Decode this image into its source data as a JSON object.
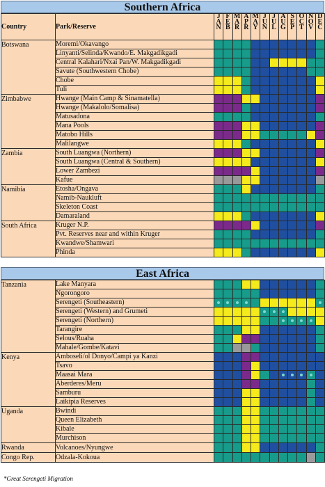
{
  "months": [
    "JAN",
    "FEB",
    "MAR",
    "APR",
    "MAY",
    "JUN",
    "JUL",
    "AUG",
    "SEP",
    "OCT",
    "NOV",
    "DEC"
  ],
  "headers": {
    "country": "Country",
    "park": "Park/Reserve"
  },
  "colors": {
    "yellow": "#f5ea1c",
    "green": "#179b8a",
    "blue": "#1f4f9e",
    "purple": "#7b2a8c",
    "gray": "#9a9a9a",
    "dot": "#7fd7d0"
  },
  "sections": [
    {
      "title": "Southern Africa",
      "groups": [
        {
          "country": "Botswana",
          "parks": [
            {
              "name": "Moremi/Okavango",
              "months": "GGGGBBBBBBBG"
            },
            {
              "name": "Linyanti/Selinda/Kwando/E. Makgadikgadi",
              "months": "GGGGBBBBBBBG"
            },
            {
              "name": "Central Kalahari/Nxai Pan/W. Makgadikgadi",
              "months": "GGGGBBYYYYGG"
            },
            {
              "name": "Savute (Southwestern Chobe)",
              "months": "GGGGBBBBBBGG"
            },
            {
              "name": "Chobe",
              "months": "YYYGBBBBBBBY"
            },
            {
              "name": "Tuli",
              "months": "YYYGBBBBBBBY"
            }
          ]
        },
        {
          "country": "Zimbabwe",
          "parks": [
            {
              "name": "Hwange (Main Camp & Sinamatella)",
              "months": "PPPYYBBBBBBP"
            },
            {
              "name": "Hwange (Makalolo/Somalisa)",
              "months": "PPPGBBBBBBBP"
            },
            {
              "name": "Matusadona",
              "months": "GGGGBBBBBBBG"
            },
            {
              "name": "Mana Pools",
              "months": "PPPYYBBBBBBP"
            },
            {
              "name": "Matobo Hills",
              "months": "PPPYYGGGGGYP"
            },
            {
              "name": "Malilangwe",
              "months": "YYYGBBBBBBBY"
            }
          ]
        },
        {
          "country": "Zambia",
          "parks": [
            {
              "name": "South Luangwa (Northern)",
              "months": "PPPYYBBBBBBP"
            },
            {
              "name": "South Luangwa (Central & Southern)",
              "months": "YYYYBBBBBBBY"
            },
            {
              "name": "Lower Zambezi",
              "months": "PPPPYBBBBBBP"
            },
            {
              "name": "Kafue",
              "months": "XXXYYBBBBBBX"
            }
          ]
        },
        {
          "country": "Namibia",
          "parks": [
            {
              "name": "Etosha/Ongava",
              "months": "GGGYBBBBBBBG"
            },
            {
              "name": "Namib-Naukluft",
              "months": "GGGGGGGGGGGG"
            },
            {
              "name": "Skeleton Coast",
              "months": "GGGGGGGGGGGG"
            },
            {
              "name": "Damaraland",
              "months": "YYYGBBBBBBBY"
            }
          ]
        },
        {
          "country": "South Africa",
          "parks": [
            {
              "name": "Kruger N.P.",
              "months": "PPPPYBBBBBBP"
            },
            {
              "name": "Pvt. Reserves near and within Kruger",
              "months": "GGGGBBBBBBBG"
            },
            {
              "name": "Kwandwe/Shamwari",
              "months": "GGGGGGGGGGGG"
            },
            {
              "name": "Phinda",
              "months": "YYYGBBBBBBBY"
            }
          ]
        }
      ]
    },
    {
      "title": "East Africa",
      "groups": [
        {
          "country": "Tanzania",
          "parks": [
            {
              "name": "Lake Manyara",
              "months": "GGGYYBBBBBBG"
            },
            {
              "name": "Ngorongoro",
              "months": "GGGGGBBBBBBG"
            },
            {
              "name": "Serengeti (Southeastern)",
              "months": "GGGGGYYYYYYG",
              "dots": [
                0,
                1,
                2,
                3,
                11
              ]
            },
            {
              "name": "Serengeti (Western) and Grumeti",
              "months": "YYYYYGGGYYYY",
              "dots": [
                5,
                6,
                7
              ]
            },
            {
              "name": "Serengeti (Northern)",
              "months": "YYYYYGGGGGGY",
              "dots": [
                7,
                8,
                9,
                10
              ]
            },
            {
              "name": "Tarangire",
              "months": "GGGYYBBBBBBG"
            },
            {
              "name": "Selous/Ruaha",
              "months": "GGYPPBBBBBBG"
            },
            {
              "name": "Mahale/Gombe/Katavi",
              "months": "GGXXGBBBBBBG"
            }
          ]
        },
        {
          "country": "Kenya",
          "parks": [
            {
              "name": "Amboseli/ol Donyo/Campi ya Kanzi",
              "months": "BBBPPBBBBBBB"
            },
            {
              "name": "Tsavo",
              "months": "BBBPYBBBBBBB"
            },
            {
              "name": "Maasai Mara",
              "months": "BBBPYGBBBBGB",
              "dots": [
                7,
                8,
                9,
                10
              ]
            },
            {
              "name": "Aberderes/Meru",
              "months": "BBBPPBBBBBGB"
            },
            {
              "name": "Samburu",
              "months": "BBBYYBBBBBGB"
            },
            {
              "name": "Laikipia Reserves",
              "months": "BBBYYBBBBBGB"
            }
          ]
        },
        {
          "country": "Uganda",
          "parks": [
            {
              "name": "Bwindi",
              "months": "GGGYYGGGGGGG"
            },
            {
              "name": "Queen Elizabeth",
              "months": "GGGYYGGGGGGG"
            },
            {
              "name": "Kibale",
              "months": "GGGYYGGGGGGG"
            },
            {
              "name": "Murchison",
              "months": "GGGYYGGGGGGG"
            }
          ]
        },
        {
          "country": "Rwanda",
          "parks": [
            {
              "name": "Volcanoes/Nyungwe",
              "months": "GGGYYBBBBBBG"
            }
          ]
        },
        {
          "country": "Congo Rep.",
          "parks": [
            {
              "name": "Odzala-Kokoua",
              "months": "GGGGGGGGGGXG"
            }
          ]
        }
      ]
    }
  ],
  "footnote": "*Great Serengeti Migration"
}
